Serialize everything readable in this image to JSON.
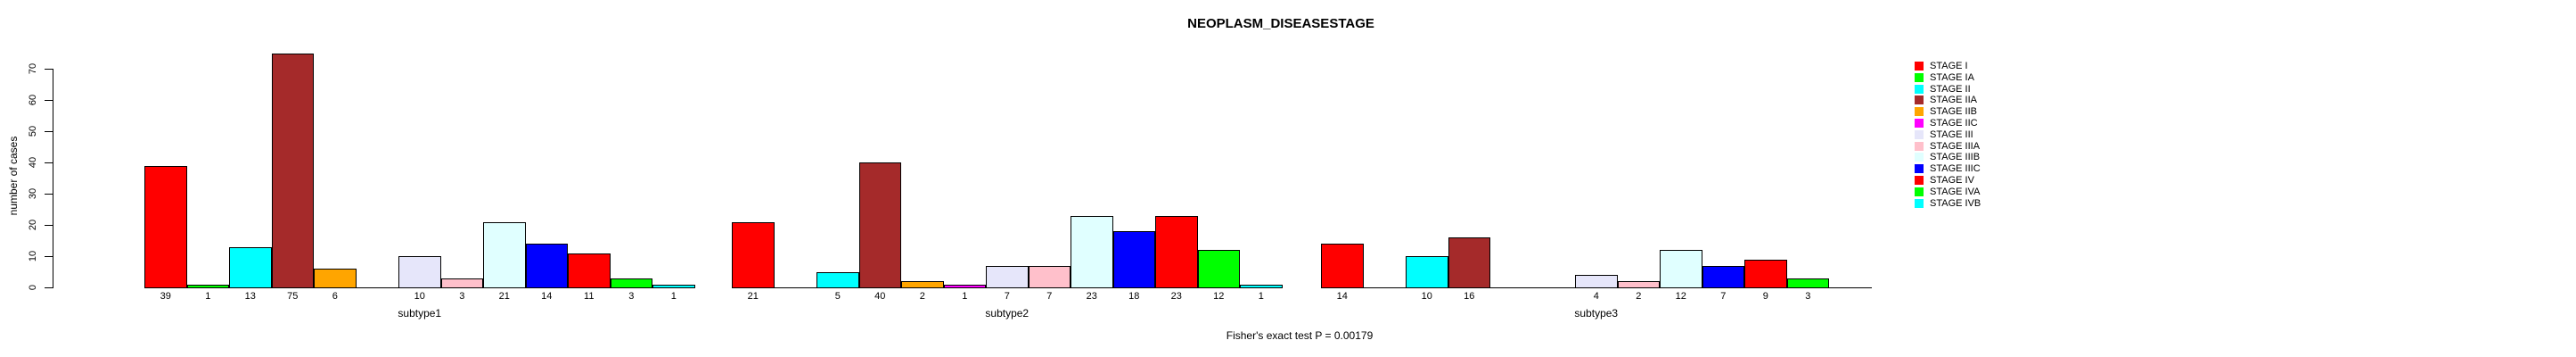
{
  "header": {
    "title": "NEOPLASM_DISEASESTAGE"
  },
  "footer": {
    "text": "Fisher's exact test P = 0.00179"
  },
  "chart_data": {
    "type": "bar",
    "title": "NEOPLASM_DISEASESTAGE",
    "xlabel": "",
    "ylabel": "number of cases",
    "ylim": [
      0,
      70
    ],
    "yticks": [
      0,
      10,
      20,
      30,
      40,
      50,
      60,
      70
    ],
    "grid": false,
    "legend_position": "right",
    "annotation": "Fisher's exact test P = 0.00179",
    "categories": [
      "subtype1",
      "subtype2",
      "subtype3"
    ],
    "series": [
      {
        "name": "STAGE I",
        "color": "#FF0000",
        "values": [
          39,
          21,
          14
        ]
      },
      {
        "name": "STAGE IA",
        "color": "#00FF00",
        "values": [
          1,
          0,
          0
        ]
      },
      {
        "name": "STAGE II",
        "color": "#00FFFF",
        "values": [
          13,
          5,
          10
        ]
      },
      {
        "name": "STAGE IIA",
        "color": "#A52A2A",
        "values": [
          75,
          40,
          16
        ]
      },
      {
        "name": "STAGE IIB",
        "color": "#FFA500",
        "values": [
          6,
          2,
          0
        ]
      },
      {
        "name": "STAGE IIC",
        "color": "#FF00FF",
        "values": [
          0,
          1,
          0
        ]
      },
      {
        "name": "STAGE III",
        "color": "#E6E6FA",
        "values": [
          10,
          7,
          4
        ]
      },
      {
        "name": "STAGE IIIA",
        "color": "#FFC0CB",
        "values": [
          3,
          7,
          2
        ]
      },
      {
        "name": "STAGE IIIB",
        "color": "#E0FFFF",
        "values": [
          21,
          23,
          12
        ]
      },
      {
        "name": "STAGE IIIC",
        "color": "#0000FF",
        "values": [
          14,
          18,
          7
        ]
      },
      {
        "name": "STAGE IV",
        "color": "#FF0000",
        "values": [
          11,
          23,
          9
        ]
      },
      {
        "name": "STAGE IVA",
        "color": "#00FF00",
        "values": [
          3,
          12,
          3
        ]
      },
      {
        "name": "STAGE IVB",
        "color": "#00FFFF",
        "values": [
          1,
          1,
          0
        ]
      }
    ],
    "colors": {
      "bar_border": "#000000",
      "axis": "#000000",
      "text": "#000000",
      "background": "#FFFFFF"
    }
  }
}
